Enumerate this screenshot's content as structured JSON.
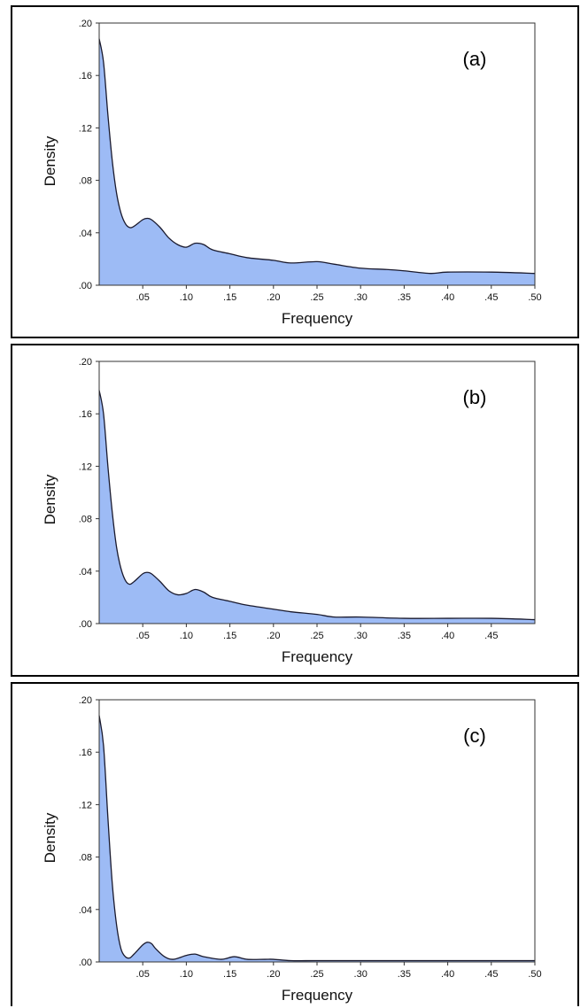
{
  "chart_data": [
    {
      "type": "area",
      "panel_label": "(a)",
      "xlabel": "Frequency",
      "ylabel": "Density",
      "xlim": [
        0,
        0.5
      ],
      "ylim": [
        0,
        0.2
      ],
      "x_ticks": [
        ".05",
        ".10",
        ".15",
        ".20",
        ".25",
        ".30",
        ".35",
        ".40",
        ".45",
        ".50"
      ],
      "y_ticks": [
        ".00",
        ".04",
        ".08",
        ".12",
        ".16",
        ".20"
      ],
      "fill_color": "#9dbbf5",
      "line_color": "#1a1a2e",
      "x": [
        0,
        0.005,
        0.01,
        0.015,
        0.02,
        0.025,
        0.03,
        0.035,
        0.04,
        0.05,
        0.055,
        0.06,
        0.07,
        0.08,
        0.09,
        0.1,
        0.11,
        0.12,
        0.13,
        0.15,
        0.17,
        0.2,
        0.22,
        0.25,
        0.27,
        0.3,
        0.33,
        0.35,
        0.38,
        0.4,
        0.45,
        0.5
      ],
      "y": [
        0.188,
        0.17,
        0.13,
        0.095,
        0.07,
        0.055,
        0.047,
        0.044,
        0.045,
        0.05,
        0.051,
        0.05,
        0.044,
        0.036,
        0.031,
        0.029,
        0.032,
        0.031,
        0.027,
        0.024,
        0.021,
        0.019,
        0.017,
        0.018,
        0.016,
        0.013,
        0.012,
        0.011,
        0.009,
        0.01,
        0.01,
        0.009
      ]
    },
    {
      "type": "area",
      "panel_label": "(b)",
      "xlabel": "Frequency",
      "ylabel": "Density",
      "xlim": [
        0,
        0.5
      ],
      "ylim": [
        0,
        0.2
      ],
      "x_ticks": [
        ".05",
        ".10",
        ".15",
        ".20",
        ".25",
        ".30",
        ".35",
        ".40",
        ".45"
      ],
      "y_ticks": [
        ".00",
        ".04",
        ".08",
        ".12",
        ".16",
        ".20"
      ],
      "fill_color": "#9dbbf5",
      "line_color": "#1a1a2e",
      "x": [
        0,
        0.005,
        0.01,
        0.015,
        0.02,
        0.025,
        0.03,
        0.035,
        0.04,
        0.05,
        0.055,
        0.06,
        0.07,
        0.08,
        0.09,
        0.1,
        0.11,
        0.12,
        0.13,
        0.15,
        0.17,
        0.2,
        0.22,
        0.25,
        0.27,
        0.3,
        0.35,
        0.4,
        0.45,
        0.5
      ],
      "y": [
        0.178,
        0.16,
        0.12,
        0.085,
        0.058,
        0.042,
        0.033,
        0.03,
        0.032,
        0.038,
        0.039,
        0.038,
        0.032,
        0.025,
        0.022,
        0.023,
        0.026,
        0.024,
        0.02,
        0.017,
        0.014,
        0.011,
        0.009,
        0.007,
        0.005,
        0.005,
        0.004,
        0.004,
        0.004,
        0.003
      ]
    },
    {
      "type": "area",
      "panel_label": "(c)",
      "xlabel": "Frequency",
      "ylabel": "Density",
      "xlim": [
        0,
        0.5
      ],
      "ylim": [
        0,
        0.2
      ],
      "x_ticks": [
        ".05",
        ".10",
        ".15",
        ".20",
        ".25",
        ".30",
        ".35",
        ".40",
        ".45",
        ".50"
      ],
      "y_ticks": [
        ".00",
        ".04",
        ".08",
        ".12",
        ".16",
        ".20"
      ],
      "fill_color": "#9dbbf5",
      "line_color": "#1a1a2e",
      "x": [
        0,
        0.005,
        0.01,
        0.015,
        0.02,
        0.025,
        0.03,
        0.035,
        0.04,
        0.05,
        0.055,
        0.06,
        0.065,
        0.075,
        0.085,
        0.1,
        0.11,
        0.12,
        0.14,
        0.155,
        0.17,
        0.19,
        0.2,
        0.22,
        0.25,
        0.3,
        0.35,
        0.4,
        0.45,
        0.5
      ],
      "y": [
        0.188,
        0.165,
        0.11,
        0.06,
        0.028,
        0.01,
        0.004,
        0.003,
        0.006,
        0.013,
        0.015,
        0.014,
        0.01,
        0.004,
        0.002,
        0.005,
        0.006,
        0.004,
        0.002,
        0.004,
        0.002,
        0.002,
        0.002,
        0.001,
        0.001,
        0.001,
        0.001,
        0.001,
        0.001,
        0.001
      ]
    }
  ]
}
